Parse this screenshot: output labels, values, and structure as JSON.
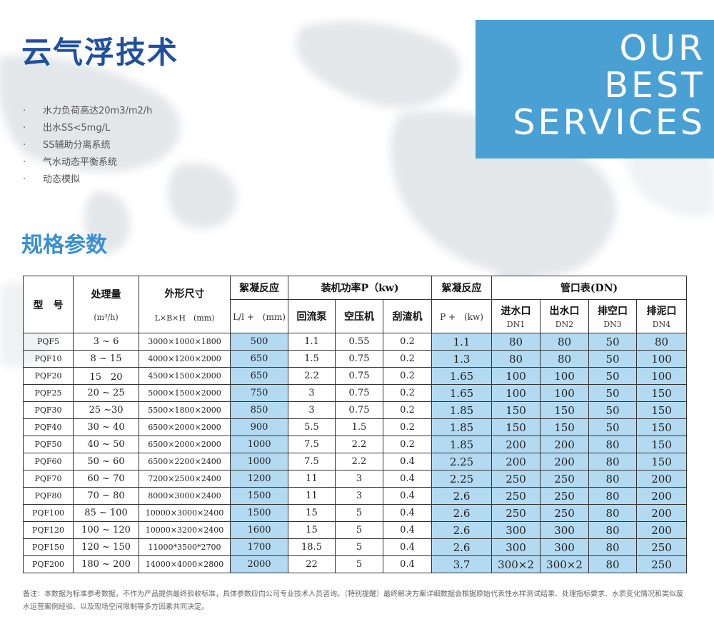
{
  "page": {
    "title": "云气浮技术",
    "features": [
      "水力负荷高达20m3/m2/h",
      "出水SS<5mg/L",
      "SS辅助分离系统",
      "气水动态平衡系统",
      "动态模拟"
    ],
    "bullet_char": "·",
    "services_lines": [
      "OUR",
      "BEST",
      "SERVICES"
    ],
    "subtitle": "规格参数",
    "note": "备注：本数据为标准参考数据，不作为产品提供最终验收标准，具体参数应向公司专业技术人员咨询。（特别提醒）最终解决方案详细数据会根据原始代表性水样测试结果、处理指标要求、水质变化情况和类似废水运营案例经验、以及现场空间限制等多方因素共同决定。"
  },
  "colors": {
    "title": "#1f4f9e",
    "accent_box": "#4aa0d3",
    "subtitle": "#3b8ed0",
    "highlight_cell": "#b4daf2"
  },
  "table": {
    "headers": {
      "model": "型　号",
      "capacity": "处理量",
      "capacity_unit": "(m³/h)",
      "dimension": "外形尺寸",
      "dimension_unit": "L×B×H　(mm)",
      "flocculation1": "絮凝反应",
      "flocculation1_unit": "L/l +　(mm)",
      "power": "装机功率P（kw)",
      "pump": "回流泵",
      "compressor": "空压机",
      "scraper": "刮渣机",
      "flocculation2": "絮凝反应",
      "flocculation2_unit": "P +　(kw)",
      "pipes": "管口表(DN)",
      "inlet": "进水口",
      "inlet_dn": "DN1",
      "outlet": "出水口",
      "outlet_dn": "DN2",
      "vent": "排空口",
      "vent_dn": "DN3",
      "sludge": "排泥口",
      "sludge_dn": "DN4"
    },
    "rows": [
      [
        "PQF5",
        "3 ~ 6",
        "3000×1000×1800",
        "500",
        "1.1",
        "0.55",
        "0.2",
        "1.1",
        "80",
        "80",
        "50",
        "80"
      ],
      [
        "PQF10",
        "8 ~ 15",
        "4000×1200×2000",
        "650",
        "1.5",
        "0.75",
        "0.2",
        "1.3",
        "80",
        "80",
        "50",
        "100"
      ],
      [
        "PQF20",
        "15　20",
        "4500×1500×2000",
        "650",
        "2.2",
        "0.75",
        "0.2",
        "1.65",
        "100",
        "100",
        "50",
        "100"
      ],
      [
        "PQF25",
        "20 ~ 25",
        "5000×1500×2000",
        "750",
        "3",
        "0.75",
        "0.2",
        "1.65",
        "100",
        "100",
        "50",
        "150"
      ],
      [
        "PQF30",
        "25 ~30",
        "5500×1800×2000",
        "850",
        "3",
        "0.75",
        "0.2",
        "1.85",
        "150",
        "150",
        "50",
        "150"
      ],
      [
        "PQF40",
        "30 ~ 40",
        "6500×2000×2000",
        "900",
        "5.5",
        "1.5",
        "0.2",
        "1.85",
        "150",
        "150",
        "50",
        "150"
      ],
      [
        "PQF50",
        "40 ~ 50",
        "6500×2000×2000",
        "1000",
        "7.5",
        "2.2",
        "0.2",
        "1.85",
        "200",
        "200",
        "80",
        "150"
      ],
      [
        "PQF60",
        "50 ~ 60",
        "6500×2200×2400",
        "1000",
        "7.5",
        "2.2",
        "0.4",
        "2.25",
        "200",
        "200",
        "80",
        "150"
      ],
      [
        "PQF70",
        "60 ~ 70",
        "7200×2500×2400",
        "1200",
        "11",
        "3",
        "0.4",
        "2.25",
        "250",
        "250",
        "80",
        "200"
      ],
      [
        "PQF80",
        "70 ~ 80",
        "8000×3000×2400",
        "1500",
        "11",
        "3",
        "0.4",
        "2.6",
        "250",
        "250",
        "80",
        "200"
      ],
      [
        "PQF100",
        "85 ~ 100",
        "10000×3000×2400",
        "1500",
        "15",
        "5",
        "0.4",
        "2.6",
        "250",
        "250",
        "80",
        "200"
      ],
      [
        "PQF120",
        "100 ~ 120",
        "10000×3200×2400",
        "1600",
        "15",
        "5",
        "0.4",
        "2.6",
        "300",
        "300",
        "80",
        "200"
      ],
      [
        "PQF150",
        "120 ~ 150",
        "11000*3500*2700",
        "1700",
        "18.5",
        "5",
        "0.4",
        "2.6",
        "300",
        "300",
        "80",
        "250"
      ],
      [
        "PQF200",
        "180 ~ 200",
        "14000×4000×2800",
        "2000",
        "22",
        "5",
        "0.4",
        "3.7",
        "300×2",
        "300×2",
        "80",
        "250"
      ]
    ]
  }
}
